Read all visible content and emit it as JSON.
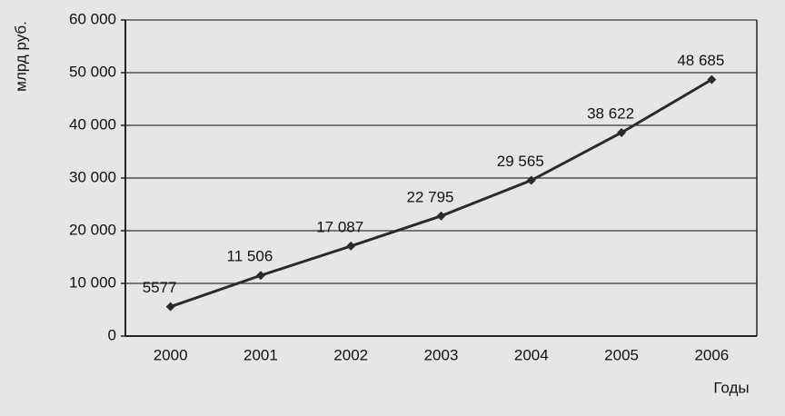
{
  "chart_data": {
    "type": "line",
    "y_label": "млрд руб.",
    "x_label": "Годы",
    "categories": [
      "2000",
      "2001",
      "2002",
      "2003",
      "2004",
      "2005",
      "2006"
    ],
    "values": [
      5577,
      11506,
      17087,
      22795,
      29565,
      38622,
      48685
    ],
    "value_labels": [
      "5577",
      "11 506",
      "17 087",
      "22 795",
      "29 565",
      "38 622",
      "48 685"
    ],
    "color": "#2b2b2b",
    "ylim": [
      0,
      60000
    ],
    "yticks": [
      0,
      {
        "value": 10000,
        "label": "10 000"
      },
      {
        "value": 20000,
        "label": "20 000"
      },
      {
        "value": 30000,
        "label": "30 000"
      },
      {
        "value": 40000,
        "label": "40 000"
      },
      {
        "value": 50000,
        "label": "50 000"
      },
      {
        "value": 60000,
        "label": "60 000"
      }
    ],
    "grid": true
  }
}
